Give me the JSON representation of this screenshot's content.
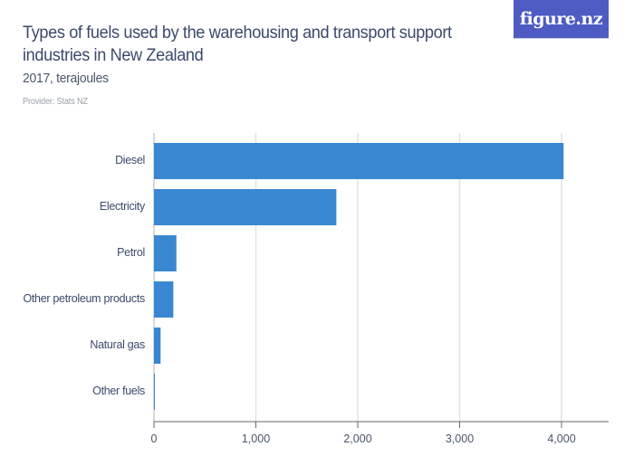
{
  "header": {
    "title": "Types of fuels used by the warehousing and transport support industries in New Zealand",
    "subtitle": "2017, terajoules",
    "provider": "Provider: Stats NZ",
    "logo": "figure.nz",
    "logo_color": "#4e5bc2"
  },
  "colors": {
    "bar": "#3a87d1",
    "title": "#3b4a6b",
    "grid": "#e3e3e3",
    "axis": "#666666"
  },
  "chart_data": {
    "type": "bar",
    "orientation": "horizontal",
    "title": "Types of fuels used by the warehousing and transport support industries in New Zealand",
    "subtitle": "2017, terajoules",
    "categories": [
      "Diesel",
      "Electricity",
      "Petrol",
      "Other petroleum products",
      "Natural gas",
      "Other fuels"
    ],
    "values": [
      4020,
      1790,
      220,
      190,
      65,
      5
    ],
    "xlabel": "",
    "ylabel": "",
    "xlim": [
      0,
      4500
    ],
    "ticks": [
      0,
      1000,
      2000,
      3000,
      4000
    ],
    "tick_labels": [
      "0",
      "1,000",
      "2,000",
      "3,000",
      "4,000"
    ],
    "grid": true,
    "legend": "none"
  }
}
